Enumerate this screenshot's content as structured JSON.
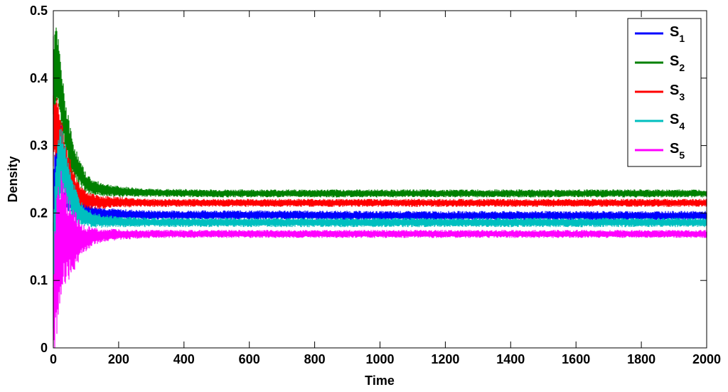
{
  "chart_data": {
    "type": "line",
    "xlabel": "Time",
    "ylabel": "Density",
    "xlim": [
      0,
      2000
    ],
    "ylim": [
      0,
      0.5
    ],
    "xticks": [
      0,
      200,
      400,
      600,
      800,
      1000,
      1200,
      1400,
      1600,
      1800,
      2000
    ],
    "yticks": [
      0,
      0.1,
      0.2,
      0.3,
      0.4,
      0.5
    ],
    "xtick_labels": [
      "0",
      "200",
      "400",
      "600",
      "800",
      "1000",
      "1200",
      "1400",
      "1600",
      "1800",
      "2000"
    ],
    "ytick_labels": [
      "0",
      "0.1",
      "0.2",
      "0.3",
      "0.4",
      "0.5"
    ],
    "grid": false,
    "legend_position": "top-right",
    "series": [
      {
        "name": "S",
        "subscript": "1",
        "color": "#0000ff",
        "x": [
          0,
          10,
          20,
          30,
          40,
          60,
          80,
          100,
          120,
          150,
          200,
          300,
          500,
          700,
          1000,
          1500,
          2000
        ],
        "y": [
          0.22,
          0.28,
          0.3,
          0.27,
          0.24,
          0.22,
          0.21,
          0.205,
          0.2,
          0.199,
          0.198,
          0.197,
          0.197,
          0.197,
          0.196,
          0.196,
          0.196
        ],
        "band": [
          0.06,
          0.05,
          0.045,
          0.04,
          0.035,
          0.025,
          0.018,
          0.014,
          0.012,
          0.01,
          0.008,
          0.007,
          0.007,
          0.007,
          0.007,
          0.007,
          0.007
        ]
      },
      {
        "name": "S",
        "subscript": "2",
        "color": "#008000",
        "x": [
          0,
          10,
          20,
          30,
          40,
          60,
          80,
          100,
          120,
          150,
          200,
          300,
          500,
          700,
          1000,
          1500,
          2000
        ],
        "y": [
          0.4,
          0.42,
          0.39,
          0.35,
          0.32,
          0.28,
          0.26,
          0.245,
          0.238,
          0.235,
          0.232,
          0.23,
          0.229,
          0.229,
          0.229,
          0.229,
          0.229
        ],
        "band": [
          0.07,
          0.06,
          0.05,
          0.045,
          0.04,
          0.03,
          0.02,
          0.015,
          0.012,
          0.01,
          0.008,
          0.006,
          0.006,
          0.006,
          0.006,
          0.006,
          0.006
        ]
      },
      {
        "name": "S",
        "subscript": "3",
        "color": "#ff0000",
        "x": [
          0,
          10,
          20,
          30,
          40,
          60,
          80,
          100,
          120,
          150,
          200,
          300,
          500,
          700,
          1000,
          1500,
          2000
        ],
        "y": [
          0.32,
          0.34,
          0.31,
          0.29,
          0.27,
          0.24,
          0.225,
          0.22,
          0.217,
          0.216,
          0.216,
          0.215,
          0.215,
          0.215,
          0.215,
          0.215,
          0.215
        ],
        "band": [
          0.06,
          0.05,
          0.045,
          0.04,
          0.035,
          0.025,
          0.018,
          0.014,
          0.012,
          0.01,
          0.008,
          0.006,
          0.006,
          0.006,
          0.006,
          0.006,
          0.006
        ]
      },
      {
        "name": "S",
        "subscript": "4",
        "color": "#00bfbf",
        "x": [
          0,
          10,
          20,
          30,
          40,
          60,
          80,
          100,
          120,
          150,
          200,
          300,
          500,
          700,
          1000,
          1500,
          2000
        ],
        "y": [
          0.12,
          0.22,
          0.27,
          0.27,
          0.25,
          0.22,
          0.2,
          0.195,
          0.19,
          0.188,
          0.187,
          0.186,
          0.186,
          0.186,
          0.186,
          0.186,
          0.186
        ],
        "band": [
          0.1,
          0.08,
          0.06,
          0.05,
          0.045,
          0.03,
          0.02,
          0.015,
          0.013,
          0.01,
          0.008,
          0.007,
          0.007,
          0.007,
          0.007,
          0.007,
          0.007
        ]
      },
      {
        "name": "S",
        "subscript": "5",
        "color": "#ff00ff",
        "x": [
          0,
          10,
          20,
          30,
          40,
          60,
          80,
          100,
          120,
          150,
          200,
          300,
          500,
          700,
          1000,
          1500,
          2000
        ],
        "y": [
          0.05,
          0.13,
          0.16,
          0.17,
          0.165,
          0.16,
          0.16,
          0.162,
          0.165,
          0.167,
          0.168,
          0.169,
          0.169,
          0.169,
          0.169,
          0.169,
          0.169
        ],
        "band": [
          0.06,
          0.13,
          0.11,
          0.09,
          0.07,
          0.05,
          0.03,
          0.02,
          0.014,
          0.01,
          0.008,
          0.006,
          0.006,
          0.006,
          0.006,
          0.006,
          0.006
        ]
      }
    ]
  }
}
